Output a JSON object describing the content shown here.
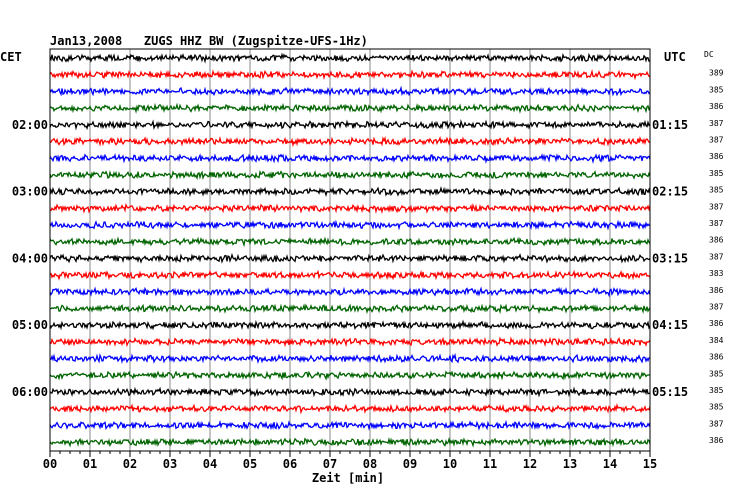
{
  "chart_data": {
    "type": "line",
    "title": "Jan13,2008   ZUGS HHZ BW (Zugspitze-UFS-1Hz)",
    "xlabel": "Zeit [min]",
    "left_axis_label": "CET",
    "right_axis_label": "UTC",
    "dc_label": "DC",
    "x_ticks": [
      "00",
      "01",
      "02",
      "03",
      "04",
      "05",
      "06",
      "07",
      "08",
      "09",
      "10",
      "11",
      "12",
      "13",
      "14",
      "15"
    ],
    "xlim": [
      0,
      15
    ],
    "grid": true,
    "trace_colors": [
      "#000000",
      "#ff0000",
      "#0000ff",
      "#006400"
    ],
    "left_time_labels": [
      {
        "trace": 4,
        "label": "02:00"
      },
      {
        "trace": 8,
        "label": "03:00"
      },
      {
        "trace": 12,
        "label": "04:00"
      },
      {
        "trace": 16,
        "label": "05:00"
      },
      {
        "trace": 20,
        "label": "06:00"
      }
    ],
    "right_time_labels": [
      {
        "trace": 4,
        "label": "01:15"
      },
      {
        "trace": 8,
        "label": "02:15"
      },
      {
        "trace": 12,
        "label": "03:15"
      },
      {
        "trace": 16,
        "label": "04:15"
      },
      {
        "trace": 20,
        "label": "05:15"
      }
    ],
    "dc_values": [
      "389",
      "385",
      "386",
      "387",
      "387",
      "386",
      "385",
      "385",
      "387",
      "387",
      "386",
      "387",
      "383",
      "386",
      "387",
      "386",
      "384",
      "386",
      "385",
      "385",
      "385",
      "387",
      "386"
    ],
    "trace_count": 24
  }
}
